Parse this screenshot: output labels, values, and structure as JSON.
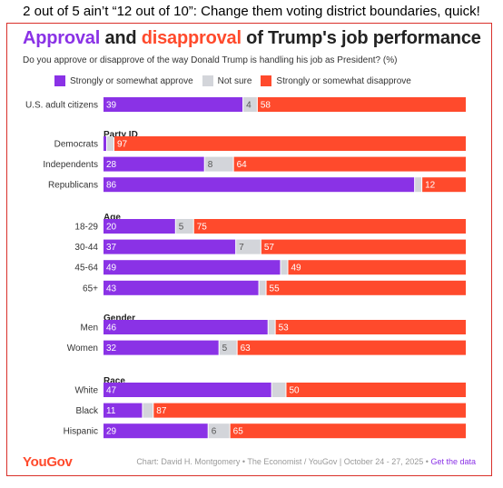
{
  "caption": "2 out of 5 ain’t “12 out of 10”: Change them voting district boundaries, quick!",
  "title": {
    "approval": "Approval",
    "and": " and ",
    "disapproval": "disapproval",
    "rest": " of Trump's job performance"
  },
  "subtitle": "Do you approve or disapprove of the way Donald Trump is handling his job as President? (%)",
  "legend": {
    "approve": "Strongly or somewhat approve",
    "not_sure": "Not sure",
    "disapprove": "Strongly or somewhat disapprove"
  },
  "colors": {
    "approve": "#8a32e6",
    "not_sure": "#d3d5da",
    "disapprove": "#ff4a2c",
    "text": "#333333"
  },
  "footer": {
    "logo": "YouGov",
    "credit": "Chart: David H. Montgomery • The Economist / YouGov | October 24 - 27, 2025 • ",
    "link": "Get the data"
  },
  "chart_data": {
    "type": "bar",
    "stacked": true,
    "orientation": "horizontal",
    "series_names": [
      "Strongly or somewhat approve",
      "Not sure",
      "Strongly or somewhat disapprove"
    ],
    "groups": [
      {
        "heading": "",
        "rows": [
          {
            "label": "U.S. adult citizens",
            "approve": 39,
            "not_sure": 4,
            "disapprove": 58
          }
        ]
      },
      {
        "heading": "Party ID",
        "rows": [
          {
            "label": "Democrats",
            "approve": 1,
            "not_sure": 2,
            "disapprove": 97,
            "approve_label": "",
            "not_sure_label": ""
          },
          {
            "label": "Independents",
            "approve": 28,
            "not_sure": 8,
            "disapprove": 64
          },
          {
            "label": "Republicans",
            "approve": 86,
            "not_sure": 2,
            "disapprove": 12,
            "not_sure_label": ""
          }
        ]
      },
      {
        "heading": "Age",
        "rows": [
          {
            "label": "18-29",
            "approve": 20,
            "not_sure": 5,
            "disapprove": 75
          },
          {
            "label": "30-44",
            "approve": 37,
            "not_sure": 7,
            "disapprove": 57
          },
          {
            "label": "45-64",
            "approve": 49,
            "not_sure": 2,
            "disapprove": 49,
            "not_sure_label": ""
          },
          {
            "label": "65+",
            "approve": 43,
            "not_sure": 2,
            "disapprove": 55,
            "not_sure_label": ""
          }
        ]
      },
      {
        "heading": "Gender",
        "rows": [
          {
            "label": "Men",
            "approve": 46,
            "not_sure": 2,
            "disapprove": 53,
            "not_sure_label": ""
          },
          {
            "label": "Women",
            "approve": 32,
            "not_sure": 5,
            "disapprove": 63
          }
        ]
      },
      {
        "heading": "Race",
        "rows": [
          {
            "label": "White",
            "approve": 47,
            "not_sure": 4,
            "disapprove": 50,
            "not_sure_label": ""
          },
          {
            "label": "Black",
            "approve": 11,
            "not_sure": 3,
            "disapprove": 87,
            "not_sure_label": ""
          },
          {
            "label": "Hispanic",
            "approve": 29,
            "not_sure": 6,
            "disapprove": 65
          }
        ]
      }
    ]
  }
}
